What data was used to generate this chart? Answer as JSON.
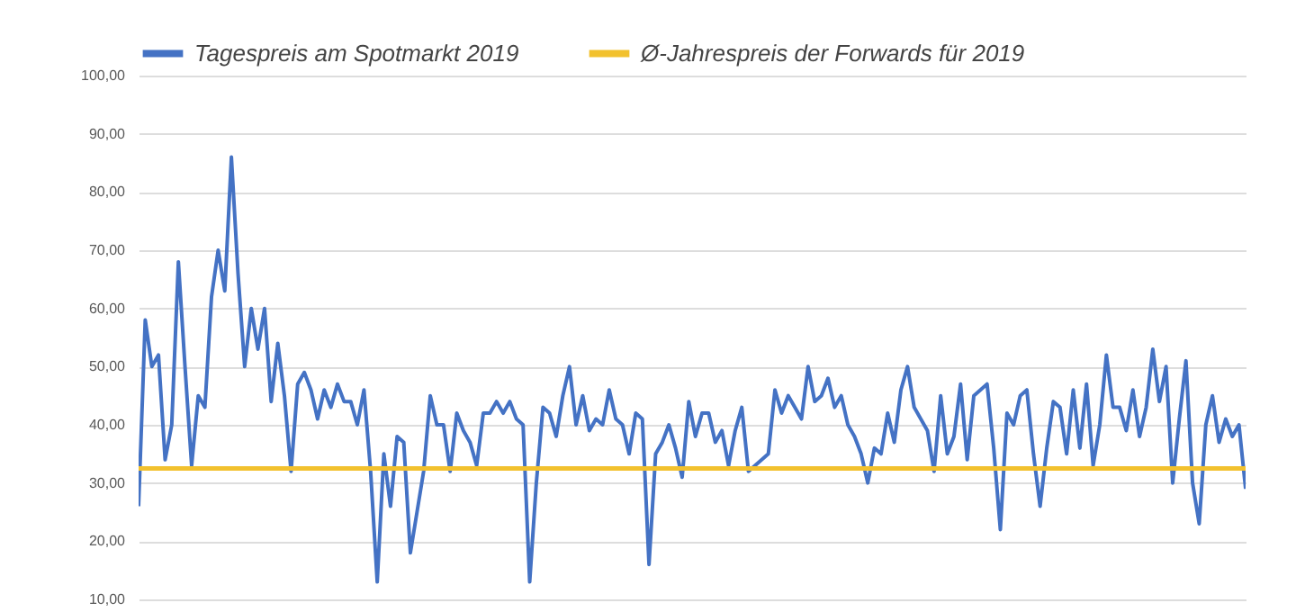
{
  "chart_data": {
    "type": "line",
    "categories": [
      null,
      null,
      null,
      null,
      null,
      null,
      null,
      null,
      null,
      null,
      null,
      null,
      null,
      null,
      null,
      null,
      null,
      null,
      null,
      null,
      null,
      null,
      null,
      null,
      null,
      null,
      null,
      null,
      null,
      null,
      null,
      null,
      null,
      null,
      null,
      null,
      null,
      null,
      null,
      null,
      null,
      null,
      null,
      null,
      null,
      null,
      null,
      null,
      null,
      null,
      null,
      null,
      null,
      null,
      null,
      null,
      null,
      null,
      null,
      null,
      null,
      null,
      null,
      null,
      null,
      null,
      null,
      null,
      null,
      null,
      null,
      null,
      null,
      null,
      null,
      null,
      null,
      null,
      null,
      null,
      null,
      null,
      null,
      null,
      null,
      null,
      null,
      null,
      null,
      null,
      null,
      null,
      null,
      null,
      null,
      null,
      null,
      null,
      null,
      null,
      null,
      null,
      null,
      null,
      null,
      null,
      null,
      null,
      null,
      null,
      null,
      null,
      null,
      null,
      null,
      null,
      null,
      null,
      null,
      null,
      null,
      null,
      null,
      null,
      null,
      null,
      null,
      null,
      null,
      null,
      null,
      null,
      null,
      null,
      null,
      null,
      null,
      null,
      null,
      null,
      null,
      null,
      null,
      null,
      null,
      null,
      null,
      null,
      null,
      null,
      null,
      null,
      null,
      null,
      null,
      null,
      null,
      null,
      null,
      null,
      null,
      null,
      null,
      null,
      null,
      null,
      null,
      null
    ],
    "ylim": [
      10,
      100
    ],
    "yticks": [
      {
        "value": 10,
        "label": "10,00"
      },
      {
        "value": 20,
        "label": "20,00"
      },
      {
        "value": 30,
        "label": "30,00"
      },
      {
        "value": 40,
        "label": "40,00"
      },
      {
        "value": 50,
        "label": "50,00"
      },
      {
        "value": 60,
        "label": "60,00"
      },
      {
        "value": 70,
        "label": "70,00"
      },
      {
        "value": 80,
        "label": "80,00"
      },
      {
        "value": 90,
        "label": "90,00"
      },
      {
        "value": 100,
        "label": "100,00"
      }
    ],
    "grid": "y",
    "legend": "top",
    "tick_labels": "y",
    "series": [
      {
        "name": "Tagespreis am Spotmarkt 2019",
        "color": "#4472c4",
        "values": [
          26,
          58,
          50,
          52,
          34,
          40,
          68,
          50,
          33,
          45,
          43,
          62,
          70,
          63,
          86,
          66,
          50,
          60,
          53,
          60,
          44,
          54,
          45,
          32,
          47,
          49,
          46,
          41,
          46,
          43,
          47,
          44,
          44,
          40,
          46,
          32,
          13,
          35,
          26,
          38,
          37,
          18,
          25,
          32,
          45,
          40,
          40,
          32,
          42,
          39,
          37,
          33,
          42,
          42,
          44,
          42,
          44,
          41,
          40,
          13,
          30,
          43,
          42,
          38,
          45,
          50,
          40,
          45,
          39,
          41,
          40,
          46,
          41,
          40,
          35,
          42,
          41,
          16,
          35,
          37,
          40,
          36,
          31,
          44,
          38,
          42,
          42,
          37,
          39,
          33,
          39,
          43,
          32,
          33,
          34,
          35,
          46,
          42,
          45,
          43,
          41,
          50,
          44,
          45,
          48,
          43,
          45,
          40,
          38,
          35,
          30,
          36,
          35,
          42,
          37,
          46,
          50,
          43,
          41,
          39,
          32,
          45,
          35,
          38,
          47,
          34,
          45,
          46,
          47,
          36,
          22,
          42,
          40,
          45,
          46,
          35,
          26,
          36,
          44,
          43,
          35,
          46,
          36,
          47,
          33,
          40,
          52,
          43,
          43,
          39,
          46,
          38,
          43,
          53,
          44,
          50,
          30,
          41,
          51,
          30,
          23,
          40,
          45,
          37,
          41,
          38,
          40,
          29
        ]
      }
    ],
    "ref_lines": [
      {
        "axis": "y",
        "value": 32.5,
        "label": "Ø-Jahrespreis der Forwards für 2019",
        "color": "#f2c12e"
      }
    ]
  }
}
